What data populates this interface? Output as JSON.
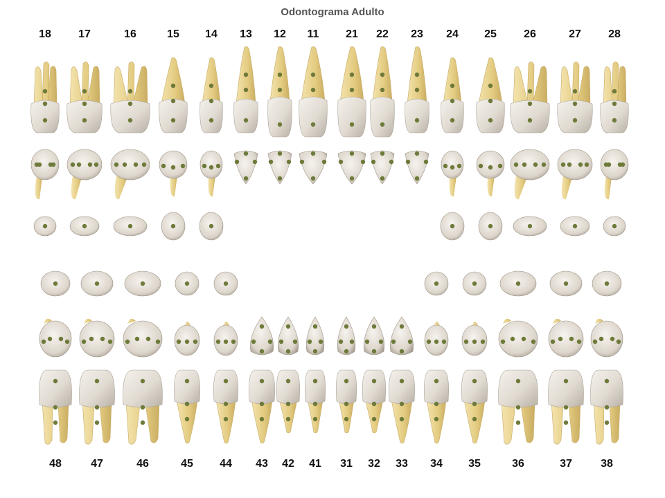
{
  "title": "Odontograma Adulto",
  "upper_numbers": [
    "18",
    "17",
    "16",
    "15",
    "14",
    "13",
    "12",
    "11",
    "21",
    "22",
    "23",
    "24",
    "25",
    "26",
    "27",
    "28"
  ],
  "lower_numbers": [
    "48",
    "47",
    "46",
    "45",
    "44",
    "43",
    "42",
    "41",
    "31",
    "32",
    "33",
    "34",
    "35",
    "36",
    "37",
    "38"
  ],
  "colors": {
    "crown": "#e6e0d8",
    "root": "#e8d38e",
    "dot": "#6e7a3a"
  }
}
